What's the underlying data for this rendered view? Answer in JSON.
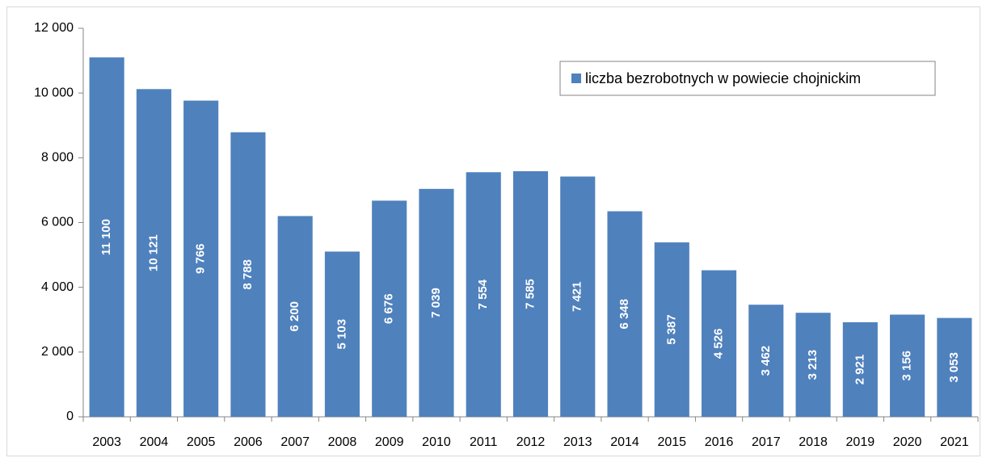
{
  "chart_data": {
    "type": "bar",
    "categories": [
      "2003",
      "2004",
      "2005",
      "2006",
      "2007",
      "2008",
      "2009",
      "2010",
      "2011",
      "2012",
      "2013",
      "2014",
      "2015",
      "2016",
      "2017",
      "2018",
      "2019",
      "2020",
      "2021"
    ],
    "series": [
      {
        "name": "liczba bezrobotnych w powiecie chojnickim",
        "color": "#4f81bd",
        "values": [
          11100,
          10121,
          9766,
          8788,
          6200,
          5103,
          6676,
          7039,
          7554,
          7585,
          7421,
          6348,
          5387,
          4526,
          3462,
          3213,
          2921,
          3156,
          3053
        ],
        "value_labels": [
          "11 100",
          "10 121",
          "9 766",
          "8 788",
          "6 200",
          "5 103",
          "6 676",
          "7 039",
          "7 554",
          "7 585",
          "7 421",
          "6 348",
          "5 387",
          "4 526",
          "3 462",
          "3 213",
          "2 921",
          "3 156",
          "3 053"
        ]
      }
    ],
    "ylim": [
      0,
      12000
    ],
    "yticks": [
      0,
      {
        "value": 2000,
        "label": "2 000"
      },
      {
        "value": 4000,
        "label": "4 000"
      },
      {
        "value": 6000,
        "label": "6 000"
      },
      {
        "value": 8000,
        "label": "8 000"
      },
      {
        "value": 10000,
        "label": "10 000"
      },
      {
        "value": 12000,
        "label": "12 000"
      }
    ],
    "legend": "top-right"
  }
}
